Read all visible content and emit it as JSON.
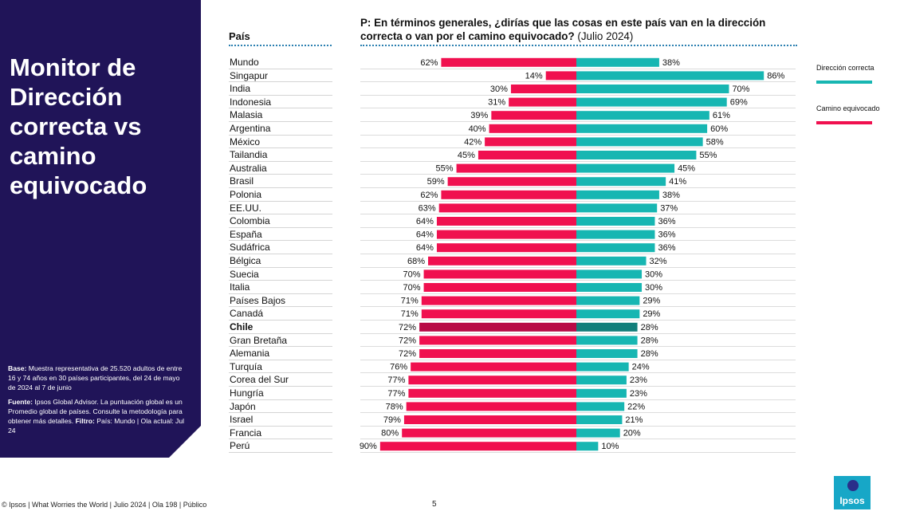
{
  "sidebar": {
    "title": "Monitor de Dirección correcta vs camino equivocado",
    "base_label": "Base:",
    "base_text": "Muestra representativa de 25.520 adultos de entre 16 y 74 años en 30 países participantes, del 24 de mayo de 2024 al 7 de junio",
    "source_label": "Fuente:",
    "source_text": "Ipsos Global Advisor. La puntuación global es un Promedio global de países. Consulte la metodología para obtener más detalles.",
    "filter_label": "Filtro:",
    "filter_text": "País: Mundo | Ola actual: Jul 24"
  },
  "column_header": "País",
  "question": {
    "bold": "P: En términos generales, ¿dirías que las cosas en este país van en la dirección correcta o van por el camino equivocado?",
    "normal": "(Julio 2024)"
  },
  "legend": {
    "right": "Dirección correcta",
    "wrong": "Camino equivocado"
  },
  "colors": {
    "right": "#17b6b2",
    "wrong": "#f0104f",
    "right_highlight": "#137f7b",
    "wrong_highlight": "#b80a45",
    "sidebar": "#201458"
  },
  "chart_data": {
    "type": "bar",
    "orientation": "diverging-horizontal",
    "highlight": "Chile",
    "categories": [
      "Mundo",
      "Singapur",
      "India",
      "Indonesia",
      "Malasia",
      "Argentina",
      "México",
      "Tailandia",
      "Australia",
      "Brasil",
      "Polonia",
      "EE.UU.",
      "Colombia",
      "España",
      "Sudáfrica",
      "Bélgica",
      "Suecia",
      "Italia",
      "Países Bajos",
      "Canadá",
      "Chile",
      "Gran Bretaña",
      "Alemania",
      "Turquía",
      "Corea del Sur",
      "Hungría",
      "Japón",
      "Israel",
      "Francia",
      "Perú"
    ],
    "series": [
      {
        "name": "Camino equivocado",
        "values": [
          62,
          14,
          30,
          31,
          39,
          40,
          42,
          45,
          55,
          59,
          62,
          63,
          64,
          64,
          64,
          68,
          70,
          70,
          71,
          71,
          72,
          72,
          72,
          76,
          77,
          77,
          78,
          79,
          80,
          90
        ]
      },
      {
        "name": "Dirección correcta",
        "values": [
          38,
          86,
          70,
          69,
          61,
          60,
          58,
          55,
          45,
          41,
          38,
          37,
          36,
          36,
          36,
          32,
          30,
          30,
          29,
          29,
          28,
          28,
          28,
          24,
          23,
          23,
          22,
          21,
          20,
          10
        ]
      }
    ],
    "value_suffix": "%"
  },
  "footer": "© Ipsos | What Worries the World | Julio 2024 | Ola 198 | Público",
  "page_number": "5",
  "logo_text": "Ipsos"
}
